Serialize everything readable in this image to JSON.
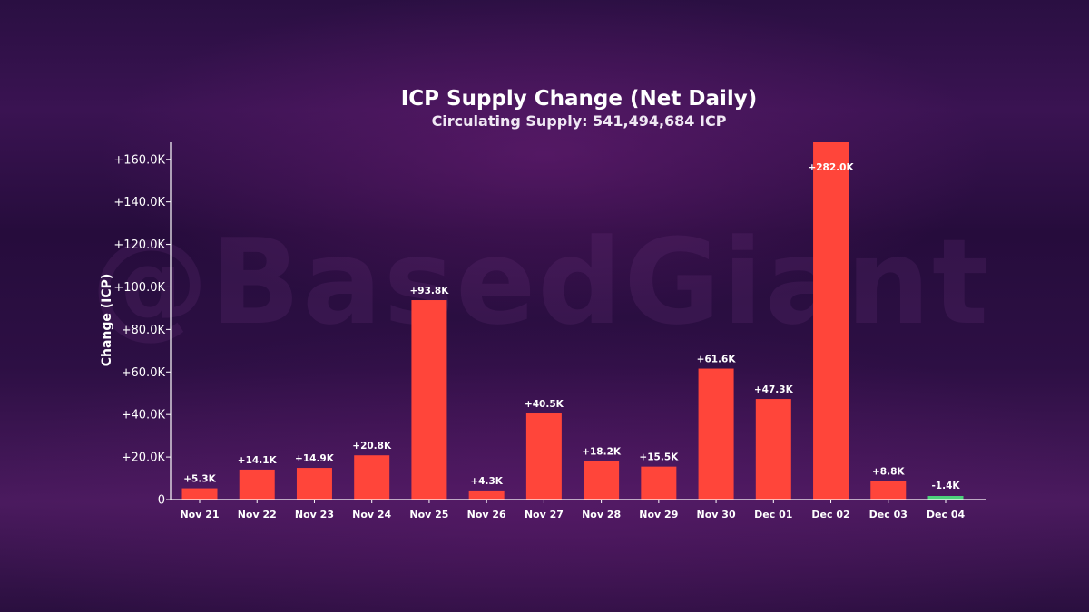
{
  "watermark": "@BasedGiant",
  "chart_data": {
    "type": "bar",
    "title": "ICP Supply Change (Net Daily)",
    "subtitle": "Circulating Supply: 541,494,684 ICP",
    "xlabel": "",
    "ylabel": "Change (ICP)",
    "ylim": [
      0,
      168000
    ],
    "yticks": [
      0,
      20000,
      40000,
      60000,
      80000,
      100000,
      120000,
      140000,
      160000
    ],
    "ytick_labels": [
      "0",
      "+20.0K",
      "+40.0K",
      "+60.0K",
      "+80.0K",
      "+100.0K",
      "+120.0K",
      "+140.0K",
      "+160.0K"
    ],
    "categories": [
      "Nov 21",
      "Nov 22",
      "Nov 23",
      "Nov 24",
      "Nov 25",
      "Nov 26",
      "Nov 27",
      "Nov 28",
      "Nov 29",
      "Nov 30",
      "Dec 01",
      "Dec 02",
      "Dec 03",
      "Dec 04"
    ],
    "values": [
      5300,
      14100,
      14900,
      20800,
      93800,
      4300,
      40500,
      18200,
      15500,
      61600,
      47300,
      282000,
      8800,
      -1400
    ],
    "data_labels": [
      "+5.3K",
      "+14.1K",
      "+14.9K",
      "+20.8K",
      "+93.8K",
      "+4.3K",
      "+40.5K",
      "+18.2K",
      "+15.5K",
      "+61.6K",
      "+47.3K",
      "+282.0K",
      "+8.8K",
      "-1.4K"
    ],
    "colors": {
      "positive": "#ff453a",
      "negative": "#4cd07a",
      "axis": "#ffffff",
      "label": "#ffffff"
    },
    "grid": false,
    "legend": "none"
  }
}
